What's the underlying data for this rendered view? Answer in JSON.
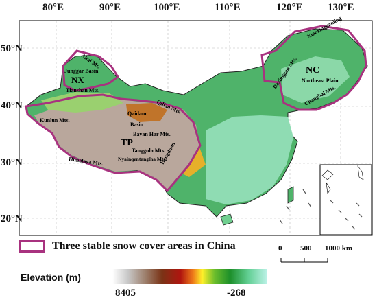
{
  "map": {
    "longitude_ticks": [
      "80°E",
      "90°E",
      "100°E",
      "110°E",
      "120°E",
      "130°E"
    ],
    "latitude_ticks": [
      "50°N",
      "40°N",
      "30°N",
      "20°N"
    ],
    "regions": {
      "nx": "NX",
      "nc": "NC",
      "tp": "TP"
    },
    "places": {
      "altai": "Altai Mt.",
      "junggar": "Junggar Basin",
      "tianshan": "Tianshan Mts.",
      "xiaoxinggan": "Xiaoxingganling",
      "daxinggan": "Daxinggan Mts.",
      "northeast_plain": "Northeast Plain",
      "changbai": "Changbai Mts.",
      "qilian": "Qilian Mts.",
      "qaidam": "Qaidam",
      "basin": "Basin",
      "kunlun": "Kunlun Mts.",
      "bayanhar": "Bayan Har Mts.",
      "tanggula": "Tanggula Mts.",
      "nyainqentanglha": "Nyainqentanglha Mts.",
      "himalaya": "Himalaya Mts.",
      "hengduan": "Hengduan"
    }
  },
  "legend": {
    "snow_areas_label": "Three stable snow cover areas in China",
    "snow_area_color": "#a8327f"
  },
  "scale_bar": {
    "labels": [
      "0",
      "500",
      "1000 km"
    ]
  },
  "elevation": {
    "title": "Elevation (m)",
    "max": "8405",
    "min": "-268"
  }
}
